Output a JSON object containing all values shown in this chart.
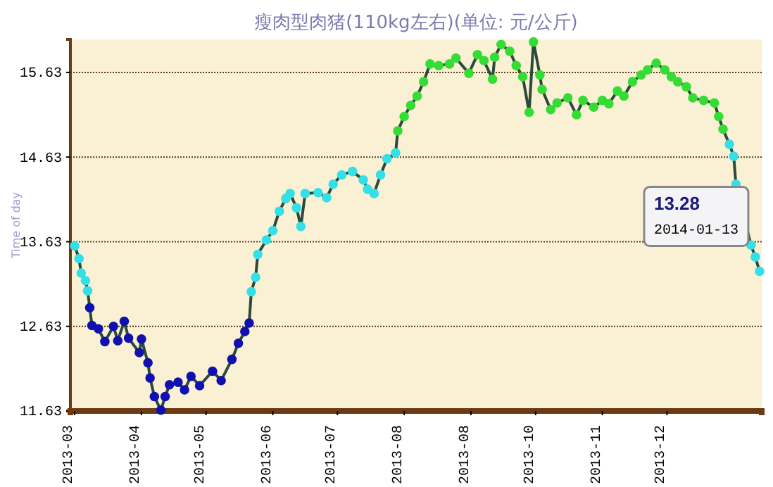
{
  "chart_data": {
    "type": "line",
    "title": "瘦肉型肉猪(110kg左右)(单位: 元/公斤)",
    "ylabel": "Time of day",
    "x": [
      "2013-03-01",
      "2013-03-03",
      "2013-03-04",
      "2013-03-06",
      "2013-03-07",
      "2013-03-08",
      "2013-03-09",
      "2013-03-12",
      "2013-03-15",
      "2013-03-19",
      "2013-03-21",
      "2013-03-24",
      "2013-03-26",
      "2013-03-31",
      "2013-04-01",
      "2013-04-04",
      "2013-04-05",
      "2013-04-07",
      "2013-04-10",
      "2013-04-12",
      "2013-04-14",
      "2013-04-18",
      "2013-04-21",
      "2013-04-24",
      "2013-04-28",
      "2013-05-04",
      "2013-05-08",
      "2013-05-13",
      "2013-05-16",
      "2013-05-19",
      "2013-05-21",
      "2013-05-22",
      "2013-05-24",
      "2013-05-25",
      "2013-05-29",
      "2013-06-01",
      "2013-06-04",
      "2013-06-07",
      "2013-06-09",
      "2013-06-12",
      "2013-06-14",
      "2013-06-16",
      "2013-06-22",
      "2013-06-26",
      "2013-06-29",
      "2013-07-03",
      "2013-07-08",
      "2013-07-13",
      "2013-07-15",
      "2013-07-18",
      "2013-07-21",
      "2013-07-24",
      "2013-07-28",
      "2013-07-29",
      "2013-08-01",
      "2013-08-04",
      "2013-08-07",
      "2013-08-10",
      "2013-08-13",
      "2013-08-17",
      "2013-08-22",
      "2013-08-25",
      "2013-08-31",
      "2013-09-04",
      "2013-09-07",
      "2013-09-11",
      "2013-09-12",
      "2013-09-15",
      "2013-09-19",
      "2013-09-22",
      "2013-09-25",
      "2013-09-28",
      "2013-09-30",
      "2013-10-03",
      "2013-10-04",
      "2013-10-08",
      "2013-10-11",
      "2013-10-16",
      "2013-10-20",
      "2013-10-23",
      "2013-10-28",
      "2013-11-01",
      "2013-11-04",
      "2013-11-08",
      "2013-11-11",
      "2013-11-15",
      "2013-11-19",
      "2013-11-22",
      "2013-11-26",
      "2013-11-30",
      "2013-12-03",
      "2013-12-06",
      "2013-12-10",
      "2013-12-13",
      "2013-12-18",
      "2013-12-23",
      "2013-12-25",
      "2013-12-27",
      "2013-12-30",
      "2014-01-01",
      "2014-01-02",
      "2014-01-09",
      "2014-01-11",
      "2014-01-13"
    ],
    "series": [
      {
        "color": "#2b4a3a",
        "values": [
          13.58,
          13.43,
          13.26,
          13.17,
          13.05,
          12.85,
          12.64,
          12.6,
          12.45,
          12.63,
          12.46,
          12.69,
          12.49,
          12.32,
          12.48,
          12.2,
          12.02,
          11.8,
          11.64,
          11.8,
          11.94,
          11.97,
          11.88,
          12.04,
          11.93,
          12.1,
          11.99,
          12.24,
          12.43,
          12.57,
          12.67,
          13.04,
          13.21,
          13.48,
          13.65,
          13.76,
          13.99,
          14.14,
          14.2,
          14.03,
          13.81,
          14.2,
          14.21,
          14.15,
          14.31,
          14.42,
          14.46,
          14.36,
          14.25,
          14.2,
          14.42,
          14.61,
          14.68,
          14.94,
          15.11,
          15.24,
          15.35,
          15.52,
          15.73,
          15.71,
          15.73,
          15.8,
          15.62,
          15.84,
          15.77,
          15.55,
          15.81,
          15.96,
          15.88,
          15.71,
          15.58,
          15.16,
          15.99,
          15.6,
          15.43,
          15.19,
          15.27,
          15.33,
          15.13,
          15.3,
          15.22,
          15.3,
          15.26,
          15.41,
          15.35,
          15.52,
          15.6,
          15.66,
          15.74,
          15.66,
          15.58,
          15.52,
          15.46,
          15.33,
          15.3,
          15.27,
          15.11,
          14.96,
          14.78,
          14.64,
          14.31,
          13.59,
          13.45,
          13.28
        ],
        "colors": [
          "#33e0e8",
          "#33e0e8",
          "#33e0e8",
          "#33e0e8",
          "#33e0e8",
          "#1010b0",
          "#1010b0",
          "#1010b0",
          "#1010b0",
          "#1010b0",
          "#1010b0",
          "#1010b0",
          "#1010b0",
          "#1010b0",
          "#1010b0",
          "#1010b0",
          "#1010b0",
          "#1010b0",
          "#1010b0",
          "#1010b0",
          "#1010b0",
          "#1010b0",
          "#1010b0",
          "#1010b0",
          "#1010b0",
          "#1010b0",
          "#1010b0",
          "#1010b0",
          "#1010b0",
          "#1010b0",
          "#1010b0",
          "#33e0e8",
          "#33e0e8",
          "#33e0e8",
          "#33e0e8",
          "#33e0e8",
          "#33e0e8",
          "#33e0e8",
          "#33e0e8",
          "#33e0e8",
          "#33e0e8",
          "#33e0e8",
          "#33e0e8",
          "#33e0e8",
          "#33e0e8",
          "#33e0e8",
          "#33e0e8",
          "#33e0e8",
          "#33e0e8",
          "#33e0e8",
          "#33e0e8",
          "#33e0e8",
          "#33e0e8",
          "#33dd33",
          "#33dd33",
          "#33dd33",
          "#33dd33",
          "#33dd33",
          "#33dd33",
          "#33dd33",
          "#33dd33",
          "#33dd33",
          "#33dd33",
          "#33dd33",
          "#33dd33",
          "#33dd33",
          "#33dd33",
          "#33dd33",
          "#33dd33",
          "#33dd33",
          "#33dd33",
          "#33dd33",
          "#33dd33",
          "#33dd33",
          "#33dd33",
          "#33dd33",
          "#33dd33",
          "#33dd33",
          "#33dd33",
          "#33dd33",
          "#33dd33",
          "#33dd33",
          "#33dd33",
          "#33dd33",
          "#33dd33",
          "#33dd33",
          "#33dd33",
          "#33dd33",
          "#33dd33",
          "#33dd33",
          "#33dd33",
          "#33dd33",
          "#33dd33",
          "#33dd33",
          "#33dd33",
          "#33dd33",
          "#33dd33",
          "#33dd33",
          "#33e0e8",
          "#33e0e8",
          "#33e0e8",
          "#33e0e8",
          "#33e0e8",
          "#33e0e8"
        ]
      }
    ],
    "marker": "circle",
    "grid": "y",
    "xlim": [
      "2013-02-27",
      "2014-01-14"
    ],
    "xticks": [
      {
        "value": "2013-03-01",
        "label": "2013-03"
      },
      {
        "value": "2013-04-01",
        "label": "2013-04"
      },
      {
        "value": "2013-05-01",
        "label": "2013-05"
      },
      {
        "value": "2013-06-01",
        "label": "2013-06"
      },
      {
        "value": "2013-07-01",
        "label": "2013-07"
      },
      {
        "value": "2013-08-01",
        "label": "2013-08"
      },
      {
        "value": "2013-09-01",
        "label": "2013-08"
      },
      {
        "value": "2013-10-01",
        "label": "2013-10"
      },
      {
        "value": "2013-11-01",
        "label": "2013-11"
      },
      {
        "value": "2013-12-01",
        "label": "2013-12"
      }
    ],
    "ylim": [
      11.63,
      16.02
    ],
    "yticks": [
      11.63,
      12.63,
      13.63,
      14.63,
      15.63
    ],
    "annotations": [
      {
        "text": "13.28\n2014-01-13",
        "x": "2014-01-13",
        "y": 13.28
      }
    ]
  }
}
